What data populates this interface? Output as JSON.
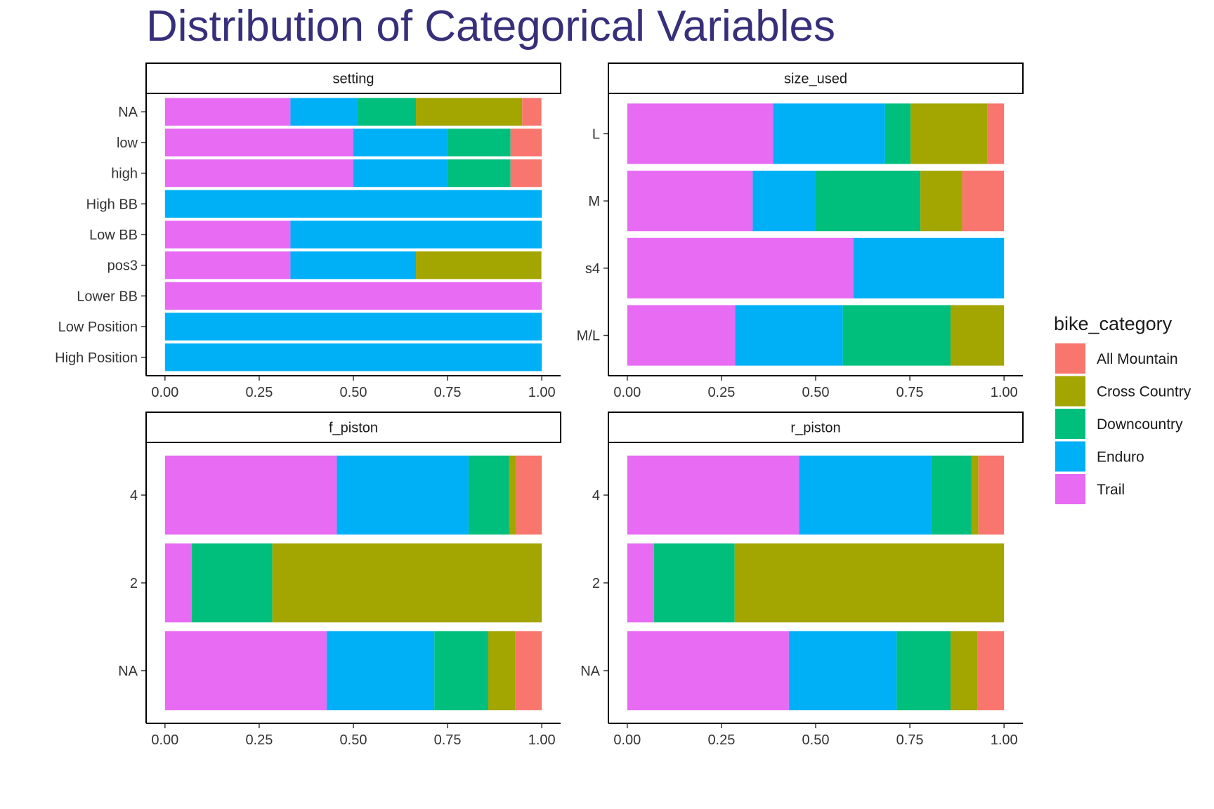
{
  "title": "Distribution of Categorical Variables",
  "chart_data": {
    "type": "bar",
    "orientation": "horizontal",
    "stacked": "fill",
    "title": "Distribution of Categorical Variables",
    "xlim": [
      0,
      1
    ],
    "x_ticks": [
      "0.00",
      "0.25",
      "0.50",
      "0.75",
      "1.00"
    ],
    "grid": false,
    "legend": {
      "title": "bike_category",
      "position": "right",
      "entries": [
        {
          "name": "All Mountain",
          "color": "#F8766D"
        },
        {
          "name": "Cross Country",
          "color": "#A3A500"
        },
        {
          "name": "Downcountry",
          "color": "#00BF7D"
        },
        {
          "name": "Enduro",
          "color": "#00B0F6"
        },
        {
          "name": "Trail",
          "color": "#E76BF3"
        }
      ]
    },
    "stack_order": [
      "Trail",
      "Enduro",
      "Downcountry",
      "Cross Country",
      "All Mountain"
    ],
    "panels": [
      {
        "name": "setting",
        "categories": [
          "NA",
          "low",
          "high",
          "High BB",
          "Low BB",
          "pos3",
          "Lower BB",
          "Low Position",
          "High Position"
        ],
        "series": [
          {
            "name": "Trail",
            "values": [
              0.333,
              0.5,
              0.5,
              0,
              0.333,
              0.333,
              1,
              0,
              0
            ]
          },
          {
            "name": "Enduro",
            "values": [
              0.179,
              0.25,
              0.25,
              1,
              0.667,
              0.333,
              0,
              1,
              1
            ]
          },
          {
            "name": "Downcountry",
            "values": [
              0.154,
              0.167,
              0.167,
              0,
              0,
              0,
              0,
              0,
              0
            ]
          },
          {
            "name": "Cross Country",
            "values": [
              0.282,
              0,
              0,
              0,
              0,
              0.333,
              0,
              0,
              0
            ]
          },
          {
            "name": "All Mountain",
            "values": [
              0.051,
              0.083,
              0.083,
              0,
              0,
              0,
              0,
              0,
              0
            ]
          }
        ]
      },
      {
        "name": "size_used",
        "categories": [
          "L",
          "M",
          "s4",
          "M/L"
        ],
        "series": [
          {
            "name": "Trail",
            "values": [
              0.387,
              0.333,
              0.6,
              0.286
            ]
          },
          {
            "name": "Enduro",
            "values": [
              0.297,
              0.167,
              0.4,
              0.286
            ]
          },
          {
            "name": "Downcountry",
            "values": [
              0.068,
              0.278,
              0,
              0.286
            ]
          },
          {
            "name": "Cross Country",
            "values": [
              0.203,
              0.111,
              0,
              0.143
            ]
          },
          {
            "name": "All Mountain",
            "values": [
              0.045,
              0.111,
              0,
              0
            ]
          }
        ]
      },
      {
        "name": "f_piston",
        "categories": [
          "4",
          "2",
          "NA"
        ],
        "series": [
          {
            "name": "Trail",
            "values": [
              0.456,
              0.071,
              0.429
            ]
          },
          {
            "name": "Enduro",
            "values": [
              0.35,
              0,
              0.286
            ]
          },
          {
            "name": "Downcountry",
            "values": [
              0.107,
              0.214,
              0.143
            ]
          },
          {
            "name": "Cross Country",
            "values": [
              0.019,
              0.715,
              0.071
            ]
          },
          {
            "name": "All Mountain",
            "values": [
              0.068,
              0,
              0.071
            ]
          }
        ]
      },
      {
        "name": "r_piston",
        "categories": [
          "4",
          "2",
          "NA"
        ],
        "series": [
          {
            "name": "Trail",
            "values": [
              0.456,
              0.071,
              0.429
            ]
          },
          {
            "name": "Enduro",
            "values": [
              0.35,
              0,
              0.286
            ]
          },
          {
            "name": "Downcountry",
            "values": [
              0.107,
              0.214,
              0.143
            ]
          },
          {
            "name": "Cross Country",
            "values": [
              0.019,
              0.715,
              0.071
            ]
          },
          {
            "name": "All Mountain",
            "values": [
              0.068,
              0,
              0.071
            ]
          }
        ]
      }
    ]
  }
}
